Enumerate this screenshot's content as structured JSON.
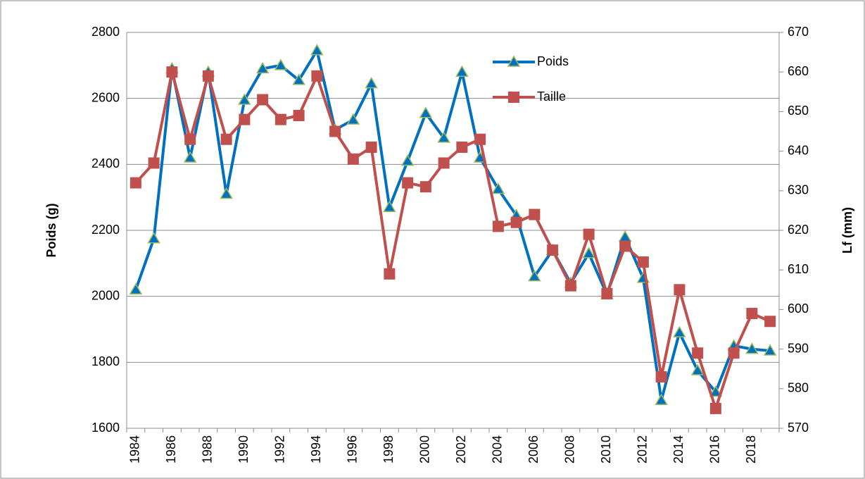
{
  "chart_data": {
    "type": "line",
    "categories": [
      "1984",
      null,
      "1986",
      null,
      "1988",
      null,
      "1990",
      null,
      "1992",
      null,
      "1994",
      null,
      "1996",
      null,
      "1998",
      null,
      "2000",
      null,
      "2002",
      null,
      "2004",
      null,
      "2006",
      null,
      "2008",
      null,
      "2010",
      null,
      "2012",
      null,
      "2014",
      null,
      "2016",
      null,
      "2018",
      null
    ],
    "y_label": "Poids (g)",
    "y2_label": "Lf (mm)",
    "ylim": [
      1600,
      2800
    ],
    "yticks": [
      1600,
      1800,
      2000,
      2200,
      2400,
      2600,
      2800
    ],
    "y2lim": [
      570,
      670
    ],
    "y2ticks": [
      570,
      580,
      590,
      600,
      610,
      620,
      630,
      640,
      650,
      660,
      670
    ],
    "grid": true,
    "series": [
      {
        "name": "Poids",
        "color": "#0070c0",
        "marker": "triangle",
        "values": [
          2020,
          2175,
          2690,
          2420,
          2680,
          2310,
          2595,
          2690,
          2700,
          2655,
          2745,
          2505,
          2535,
          2645,
          2270,
          2410,
          2555,
          2480,
          2680,
          2420,
          2325,
          2245,
          2060,
          2140,
          2040,
          2130,
          2005,
          2180,
          2055,
          1685,
          1890,
          1775,
          1710,
          1850,
          1840,
          1835
        ]
      },
      {
        "name": "Taille",
        "color": "#c0504d",
        "marker": "square",
        "axis": "y2",
        "values": [
          632,
          637,
          660,
          643,
          659,
          643,
          648,
          653,
          648,
          649,
          659,
          645,
          638,
          641,
          609,
          632,
          631,
          637,
          641,
          643,
          621,
          622,
          624,
          615,
          606,
          619,
          604,
          616,
          612,
          583,
          605,
          589,
          575,
          589,
          599,
          597
        ]
      }
    ]
  }
}
